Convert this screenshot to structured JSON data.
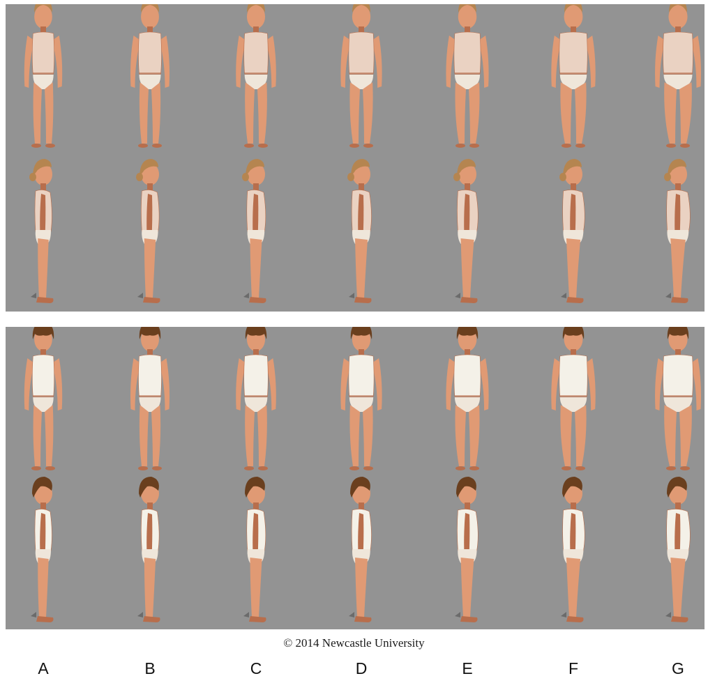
{
  "figure": {
    "panels": [
      {
        "name": "girl",
        "views": [
          "front",
          "side"
        ],
        "bodyscale": [
          0.92,
          0.97,
          1.02,
          1.07,
          1.13,
          1.2,
          1.28
        ]
      },
      {
        "name": "boy",
        "views": [
          "front",
          "side"
        ],
        "bodyscale": [
          0.92,
          0.97,
          1.02,
          1.07,
          1.13,
          1.2,
          1.28
        ]
      }
    ],
    "columns": [
      "A",
      "B",
      "C",
      "D",
      "E",
      "F",
      "G"
    ],
    "copyright": "© 2014 Newcastle University",
    "colors": {
      "background": "#939393",
      "skin": "#e09a74",
      "skin_shade": "#b86e4c",
      "girl_vest": "#ead2c2",
      "boy_vest": "#f4f1e8",
      "girl_hair": "#b58550",
      "boy_hair": "#6a3f1e",
      "briefs": "#efe6da"
    }
  }
}
